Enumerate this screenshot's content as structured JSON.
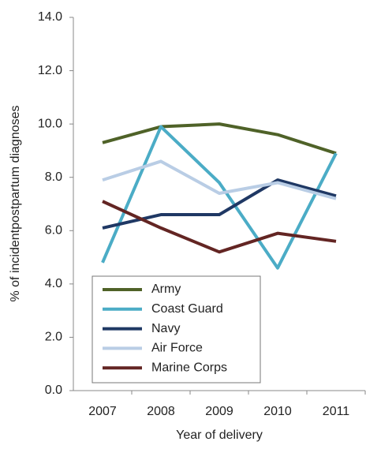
{
  "chart_data": {
    "type": "line",
    "y_label": "% of incidentpostpartum diagnoses",
    "x_label": "Year of delivery",
    "categories": [
      "2007",
      "2008",
      "2009",
      "2010",
      "2011"
    ],
    "series": [
      {
        "name": "Army",
        "color": "#4f6228",
        "values": [
          9.3,
          9.9,
          10.0,
          9.6,
          8.9
        ]
      },
      {
        "name": "Coast Guard",
        "color": "#4bacc6",
        "values": [
          4.8,
          9.9,
          7.8,
          4.6,
          8.9
        ]
      },
      {
        "name": "Navy",
        "color": "#1f3864",
        "values": [
          6.1,
          6.6,
          6.6,
          7.9,
          7.3
        ]
      },
      {
        "name": "Air Force",
        "color": "#b9cde5",
        "values": [
          7.9,
          8.6,
          7.4,
          7.8,
          7.2
        ]
      },
      {
        "name": "Marine Corps",
        "color": "#632523",
        "values": [
          7.1,
          6.1,
          5.2,
          5.9,
          5.6
        ]
      }
    ],
    "ylim": [
      0,
      14
    ],
    "yticks": [
      {
        "value": 0,
        "label": "0.0"
      },
      {
        "value": 2,
        "label": "2.0"
      },
      {
        "value": 4,
        "label": "4.0"
      },
      {
        "value": 6,
        "label": "6.0"
      },
      {
        "value": 8,
        "label": "8.0"
      },
      {
        "value": 10,
        "label": "10.0"
      },
      {
        "value": 12,
        "label": "12.0"
      },
      {
        "value": 14,
        "label": "14.0"
      }
    ],
    "grid": false,
    "legend": "lower-left"
  }
}
